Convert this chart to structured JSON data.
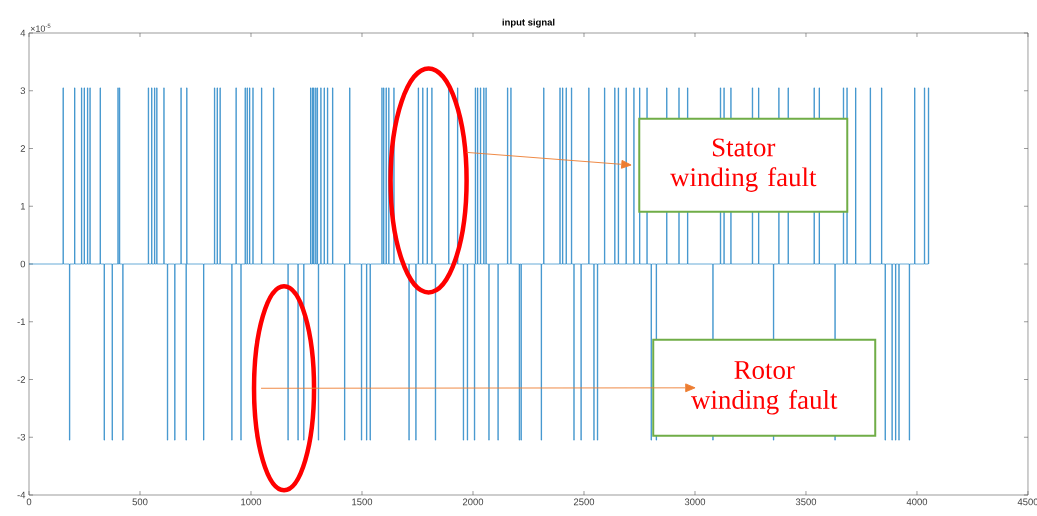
{
  "chart_data": {
    "type": "step",
    "title": "input signal",
    "x": [
      0,
      153,
      155,
      182,
      184,
      205,
      207,
      236,
      238,
      248,
      250,
      263,
      265,
      274,
      276,
      320,
      322,
      338,
      340,
      374,
      376,
      400,
      402,
      407,
      409,
      422,
      424,
      537,
      539,
      552,
      554,
      565,
      567,
      575,
      577,
      607,
      609,
      623,
      625,
      656,
      658,
      684,
      686,
      707,
      709,
      710,
      712,
      786,
      788,
      835,
      837,
      847,
      849,
      860,
      862,
      913,
      915,
      932,
      934,
      954,
      956,
      973,
      975,
      982,
      984,
      993,
      995,
      1008,
      1010,
      1047,
      1049,
      1101,
      1103,
      1166,
      1168,
      1211,
      1213,
      1237,
      1239,
      1268,
      1270,
      1276,
      1278,
      1282,
      1284,
      1291,
      1293,
      1298,
      1300,
      1303,
      1305,
      1314,
      1316,
      1329,
      1331,
      1344,
      1346,
      1367,
      1369,
      1421,
      1423,
      1444,
      1446,
      1497,
      1499,
      1520,
      1522,
      1536,
      1538,
      1589,
      1591,
      1597,
      1599,
      1608,
      1610,
      1620,
      1622,
      1643,
      1645,
      1711,
      1713,
      1742,
      1744,
      1753,
      1755,
      1773,
      1775,
      1793,
      1795,
      1814,
      1816,
      1830,
      1832,
      1890,
      1892,
      1930,
      1932,
      1956,
      1958,
      1974,
      1976,
      2006,
      2008,
      2010,
      2012,
      2020,
      2022,
      2033,
      2035,
      2048,
      2050,
      2058,
      2060,
      2071,
      2073,
      2112,
      2114,
      2155,
      2157,
      2170,
      2172,
      2208,
      2210,
      2216,
      2218,
      2307,
      2309,
      2318,
      2320,
      2391,
      2393,
      2403,
      2405,
      2419,
      2421,
      2443,
      2445,
      2454,
      2456,
      2486,
      2488,
      2521,
      2523,
      2544,
      2546,
      2560,
      2562,
      2592,
      2594,
      2638,
      2640,
      2654,
      2656,
      2689,
      2691,
      2724,
      2726,
      2750,
      2752,
      2783,
      2785,
      2802,
      2804,
      2825,
      2827,
      2872,
      2874,
      2927,
      2929,
      2966,
      2968,
      3080,
      3082,
      3114,
      3116,
      3130,
      3132,
      3161,
      3163,
      3258,
      3260,
      3286,
      3288,
      3353,
      3355,
      3377,
      3379,
      3419,
      3421,
      3536,
      3538,
      3559,
      3561,
      3630,
      3632,
      3668,
      3670,
      3684,
      3686,
      3723,
      3725,
      3789,
      3791,
      3840,
      3842,
      3856,
      3858,
      3887,
      3889,
      3903,
      3905,
      3918,
      3920,
      3965,
      3967,
      3989,
      3991,
      4033,
      4035,
      4051,
      4053
    ],
    "values": [
      0,
      3.05,
      0,
      -3.05,
      0,
      3.05,
      0,
      3.05,
      0,
      3.05,
      0,
      3.05,
      0,
      3.05,
      0,
      3.05,
      0,
      -3.05,
      0,
      -3.05,
      0,
      3.05,
      0,
      3.05,
      0,
      -3.05,
      0,
      3.05,
      0,
      3.05,
      0,
      3.05,
      0,
      3.05,
      0,
      3.05,
      0,
      -3.05,
      0,
      -3.05,
      0,
      3.05,
      0,
      -3.05,
      0,
      3.05,
      0,
      -3.05,
      0,
      3.05,
      0,
      3.05,
      0,
      3.05,
      0,
      -3.05,
      0,
      3.05,
      0,
      -3.05,
      0,
      3.05,
      0,
      3.05,
      0,
      3.05,
      0,
      3.05,
      0,
      3.05,
      0,
      3.05,
      0,
      -3.05,
      0,
      -3.05,
      0,
      -3.05,
      0,
      3.05,
      0,
      3.05,
      0,
      3.05,
      0,
      3.05,
      0,
      3.05,
      0,
      -3.05,
      0,
      3.05,
      0,
      3.05,
      0,
      3.05,
      0,
      3.05,
      0,
      -3.05,
      0,
      3.05,
      0,
      -3.05,
      0,
      -3.05,
      0,
      -3.05,
      0,
      3.05,
      0,
      3.05,
      0,
      3.05,
      0,
      3.05,
      0,
      3.05,
      0,
      -3.05,
      0,
      -3.05,
      0,
      3.05,
      0,
      3.05,
      0,
      3.05,
      0,
      3.05,
      0,
      -3.05,
      0,
      3.05,
      0,
      3.05,
      0,
      -3.05,
      0,
      -3.05,
      0,
      -3.05,
      0,
      3.05,
      0,
      3.05,
      0,
      3.05,
      0,
      3.05,
      0,
      3.05,
      0,
      -3.05,
      0,
      -3.05,
      0,
      3.05,
      0,
      3.05,
      0,
      -3.05,
      0,
      -3.05,
      0,
      -3.05,
      0,
      3.05,
      0,
      3.05,
      0,
      3.05,
      0,
      3.05,
      0,
      3.05,
      0,
      -3.05,
      0,
      -3.05,
      0,
      3.05,
      0,
      -3.05,
      0,
      -3.05,
      0,
      3.05,
      0,
      3.05,
      0,
      3.05,
      0,
      3.05,
      0,
      3.05,
      0,
      3.05,
      0,
      3.05,
      0,
      -3.05,
      0,
      -3.05,
      0,
      3.05,
      0,
      3.05,
      0,
      3.05,
      0,
      -3.05,
      0,
      3.05,
      0,
      3.05,
      0,
      3.05,
      0,
      3.05,
      0,
      3.05,
      0,
      -3.05,
      0,
      3.05,
      0,
      3.05,
      0,
      3.05,
      0,
      3.05,
      0,
      -3.05,
      0,
      3.05,
      0,
      3.05,
      0,
      3.05,
      0,
      3.05,
      0,
      3.05,
      0,
      -3.05,
      0,
      -3.05,
      0,
      -3.05,
      0,
      -3.05,
      0,
      -3.05,
      0,
      3.05,
      0,
      3.05,
      0,
      3.05,
      0
    ],
    "color": "#0072bd",
    "xlim": [
      0,
      4500
    ],
    "xticks": [
      0,
      500,
      1000,
      1500,
      2000,
      2500,
      3000,
      3500,
      4000,
      4500
    ],
    "ylim": [
      -4,
      4
    ],
    "yticks": [
      -4,
      -3,
      -2,
      -1,
      0,
      1,
      2,
      3,
      4
    ],
    "annotations": [
      "×10$^{-5}$",
      "Stator winding fault",
      "Rotor winding fault"
    ]
  }
}
